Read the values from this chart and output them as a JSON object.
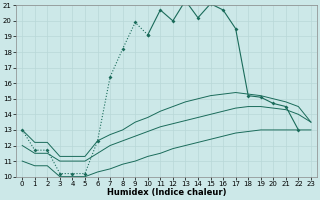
{
  "xlabel": "Humidex (Indice chaleur)",
  "color": "#1a6b5a",
  "bg_color": "#cce8e8",
  "grid_color": "#b8d8d8",
  "ylim": [
    10,
    21
  ],
  "xlim": [
    -0.5,
    23.5
  ],
  "yticks": [
    10,
    11,
    12,
    13,
    14,
    15,
    16,
    17,
    18,
    19,
    20,
    21
  ],
  "xticks": [
    0,
    1,
    2,
    3,
    4,
    5,
    6,
    7,
    8,
    9,
    10,
    11,
    12,
    13,
    14,
    15,
    16,
    17,
    18,
    19,
    20,
    21,
    22,
    23
  ],
  "x_dotted": [
    0,
    1,
    2,
    3,
    4,
    5,
    6,
    7,
    8,
    9,
    10
  ],
  "y_dotted": [
    13.0,
    11.7,
    11.7,
    10.2,
    10.2,
    10.2,
    12.3,
    16.4,
    18.2,
    19.9,
    19.1
  ],
  "x_solid": [
    10,
    11,
    12,
    13,
    14,
    15,
    16,
    17,
    18,
    19,
    20,
    21,
    22
  ],
  "y_solid": [
    19.1,
    20.7,
    20.0,
    21.3,
    20.2,
    21.1,
    20.7,
    19.5,
    15.2,
    15.1,
    14.7,
    14.5,
    13.0
  ],
  "x_env": [
    0,
    1,
    2,
    3,
    4,
    5,
    6,
    7,
    8,
    9,
    10,
    11,
    12,
    13,
    14,
    15,
    16,
    17,
    18,
    19,
    20,
    21,
    22,
    23
  ],
  "y_env_bot": [
    11.0,
    10.7,
    10.7,
    10.0,
    10.0,
    10.0,
    10.3,
    10.5,
    10.8,
    11.0,
    11.3,
    11.5,
    11.8,
    12.0,
    12.2,
    12.4,
    12.6,
    12.8,
    12.9,
    13.0,
    13.0,
    13.0,
    13.0,
    13.0
  ],
  "y_env_mid": [
    12.0,
    11.5,
    11.5,
    11.0,
    11.0,
    11.0,
    11.5,
    12.0,
    12.3,
    12.6,
    12.9,
    13.2,
    13.4,
    13.6,
    13.8,
    14.0,
    14.2,
    14.4,
    14.5,
    14.5,
    14.4,
    14.3,
    14.0,
    13.5
  ],
  "y_env_top": [
    13.0,
    12.2,
    12.2,
    11.3,
    11.3,
    11.3,
    12.3,
    12.7,
    13.0,
    13.5,
    13.8,
    14.2,
    14.5,
    14.8,
    15.0,
    15.2,
    15.3,
    15.4,
    15.3,
    15.2,
    15.0,
    14.8,
    14.5,
    13.5
  ]
}
